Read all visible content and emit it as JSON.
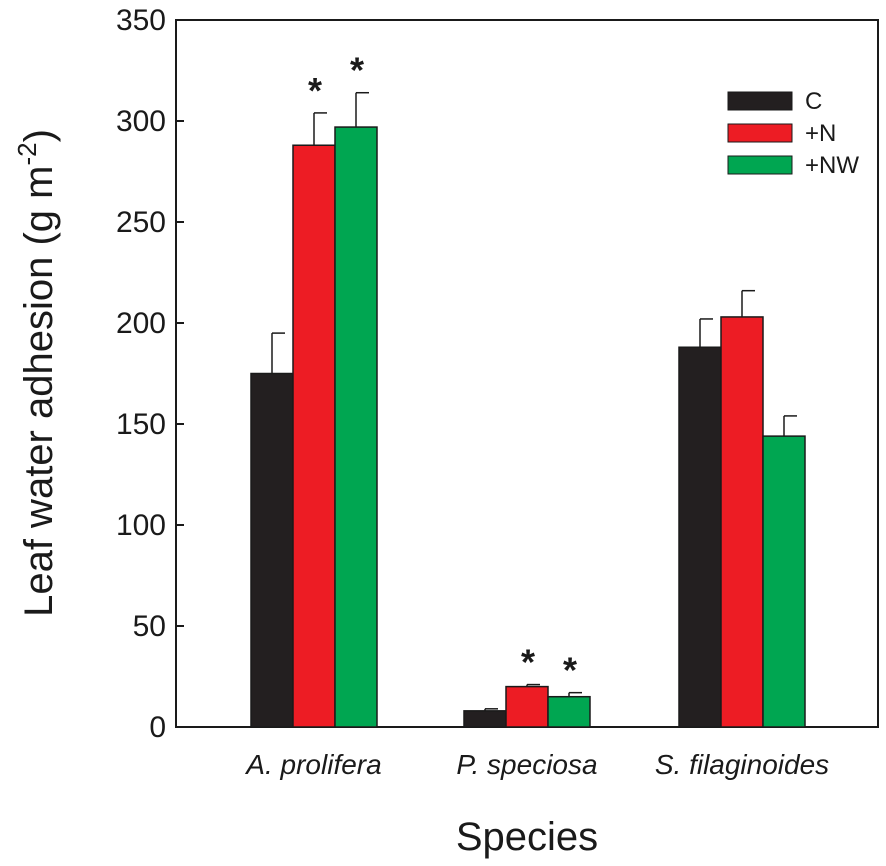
{
  "chart_data": {
    "type": "bar",
    "title": "",
    "xlabel": "Species",
    "ylabel": "Leaf water adhesion (g m",
    "ylabel_superscript": "-2",
    "ylabel_close": ")",
    "ylim": [
      0,
      350
    ],
    "yticks": [
      0,
      50,
      100,
      150,
      200,
      250,
      300,
      350
    ],
    "categories": [
      "A. prolifera",
      "P. speciosa",
      "S. filaginoides"
    ],
    "series": [
      {
        "name": "C",
        "color": "#231f20",
        "values": [
          175,
          8,
          188
        ],
        "errors": [
          20,
          1,
          14
        ]
      },
      {
        "name": "+N",
        "color": "#ed1c24",
        "values": [
          288,
          20,
          203
        ],
        "errors": [
          16,
          1,
          13
        ]
      },
      {
        "name": "+NW",
        "color": "#00a651",
        "values": [
          297,
          15,
          144
        ],
        "errors": [
          17,
          2,
          10
        ]
      }
    ],
    "significance": [
      {
        "category": "A. prolifera",
        "series": "+N",
        "label": "*"
      },
      {
        "category": "A. prolifera",
        "series": "+NW",
        "label": "*"
      },
      {
        "category": "P. speciosa",
        "series": "+N",
        "label": "*"
      },
      {
        "category": "P. speciosa",
        "series": "+NW",
        "label": "*"
      }
    ],
    "legend_position": "top-right",
    "grid": false
  }
}
